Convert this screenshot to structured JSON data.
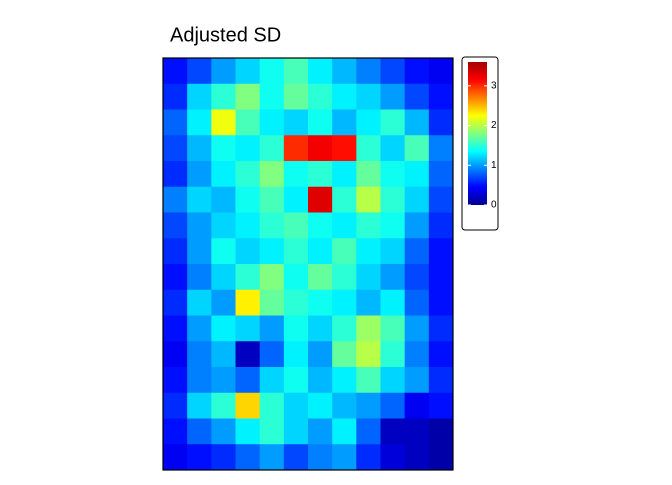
{
  "chart_data": {
    "type": "heatmap",
    "title": "Adjusted SD",
    "zlim": [
      0,
      3.6
    ],
    "zticks": [
      0,
      1,
      2,
      3
    ],
    "colorscale": [
      "#00008f",
      "#0000ff",
      "#0080ff",
      "#00ffff",
      "#80ff80",
      "#ffff00",
      "#ff8000",
      "#ff0000",
      "#a00000"
    ],
    "z": [
      [
        0.5,
        0.7,
        1.0,
        1.2,
        1.4,
        1.6,
        1.3,
        1.1,
        0.9,
        0.7,
        0.5,
        0.4
      ],
      [
        0.6,
        1.2,
        1.5,
        1.8,
        1.4,
        1.7,
        1.5,
        1.3,
        1.2,
        1.0,
        0.7,
        0.5
      ],
      [
        0.8,
        1.3,
        2.2,
        1.6,
        1.3,
        1.2,
        1.4,
        1.1,
        1.3,
        1.5,
        1.1,
        0.6
      ],
      [
        0.7,
        1.1,
        1.4,
        1.3,
        1.5,
        3.0,
        3.2,
        3.1,
        1.5,
        1.2,
        1.6,
        0.9
      ],
      [
        0.6,
        1.0,
        1.3,
        1.5,
        1.8,
        1.4,
        1.5,
        1.3,
        1.7,
        1.4,
        1.3,
        0.8
      ],
      [
        0.9,
        1.2,
        1.1,
        1.4,
        1.6,
        1.3,
        3.3,
        1.5,
        2.0,
        1.5,
        1.2,
        0.7
      ],
      [
        0.7,
        1.0,
        1.2,
        1.3,
        1.5,
        1.6,
        1.4,
        1.3,
        1.5,
        1.4,
        1.0,
        0.6
      ],
      [
        0.6,
        1.0,
        1.4,
        1.2,
        1.3,
        1.5,
        1.3,
        1.6,
        1.3,
        1.2,
        0.8,
        0.5
      ],
      [
        0.5,
        0.9,
        1.2,
        1.5,
        1.8,
        1.4,
        1.7,
        1.5,
        1.2,
        1.0,
        0.7,
        0.5
      ],
      [
        0.6,
        1.2,
        1.0,
        2.3,
        1.7,
        1.5,
        1.4,
        1.3,
        1.1,
        1.3,
        0.8,
        0.5
      ],
      [
        0.5,
        1.0,
        1.3,
        1.2,
        1.0,
        1.4,
        1.2,
        1.5,
        1.9,
        1.6,
        1.0,
        0.6
      ],
      [
        0.4,
        0.9,
        1.1,
        0.2,
        0.8,
        1.3,
        1.0,
        1.7,
        2.0,
        1.5,
        0.9,
        0.5
      ],
      [
        0.5,
        0.9,
        1.0,
        0.8,
        1.2,
        1.4,
        1.1,
        1.3,
        1.6,
        1.2,
        1.0,
        0.6
      ],
      [
        0.6,
        1.2,
        1.5,
        2.4,
        1.5,
        1.2,
        1.3,
        1.1,
        1.0,
        0.8,
        0.4,
        0.5
      ],
      [
        0.5,
        0.8,
        1.0,
        1.3,
        1.5,
        1.2,
        1.0,
        1.3,
        0.8,
        0.2,
        0.2,
        0.1
      ],
      [
        0.4,
        0.5,
        0.6,
        0.8,
        1.0,
        0.7,
        0.9,
        1.0,
        0.6,
        0.3,
        0.2,
        0.1
      ]
    ]
  }
}
